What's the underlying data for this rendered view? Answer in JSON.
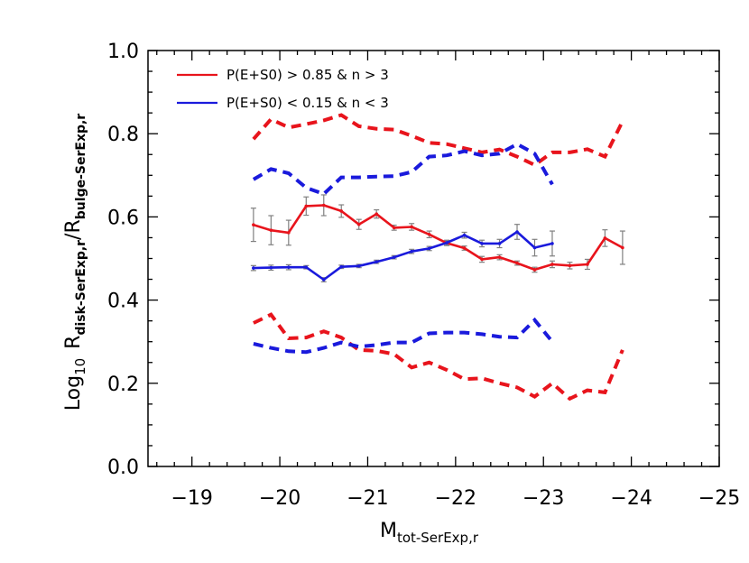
{
  "chart_data": {
    "type": "line",
    "title": "",
    "xlim": [
      -18.5,
      -25
    ],
    "ylim": [
      0,
      1
    ],
    "x_ticks": [
      "-19",
      "-20",
      "-21",
      "-22",
      "-23",
      "-24",
      "-25"
    ],
    "y_ticks": [
      "0.0",
      "0.2",
      "0.4",
      "0.6",
      "0.8",
      "1.0"
    ],
    "xlabel": {
      "main": "M",
      "sub": "tot-SerExp,r"
    },
    "ylabel": {
      "prefix": "Log",
      "prefix_sub": "10",
      "num": "R",
      "num_sub": "disk-SerExp,r",
      "slash": "/",
      "den": "R",
      "den_sub": "bulge-SerExp,r"
    },
    "grid": false,
    "legend_position": "top-left",
    "series": [
      {
        "name": "P(E+S0) > 0.85 & n > 3",
        "color": "#e8141c",
        "x": [
          -19.7,
          -19.9,
          -20.1,
          -20.3,
          -20.5,
          -20.7,
          -20.9,
          -21.1,
          -21.3,
          -21.5,
          -21.7,
          -21.9,
          -22.1,
          -22.3,
          -22.5,
          -22.7,
          -22.9,
          -23.1,
          -23.3,
          -23.5,
          -23.7,
          -23.9
        ],
        "median": [
          0.581,
          0.568,
          0.562,
          0.626,
          0.628,
          0.614,
          0.582,
          0.607,
          0.574,
          0.576,
          0.558,
          0.537,
          0.525,
          0.498,
          0.503,
          0.489,
          0.473,
          0.486,
          0.483,
          0.486,
          0.549,
          0.526
        ],
        "err": [
          0.04,
          0.035,
          0.03,
          0.022,
          0.025,
          0.015,
          0.012,
          0.01,
          0.006,
          0.008,
          0.008,
          0.006,
          0.005,
          0.007,
          0.006,
          0.005,
          0.006,
          0.008,
          0.008,
          0.012,
          0.02,
          0.04
        ],
        "upper": [
          0.787,
          0.835,
          0.815,
          0.823,
          0.832,
          0.845,
          0.818,
          0.812,
          0.81,
          0.795,
          0.778,
          0.775,
          0.765,
          0.755,
          0.762,
          0.745,
          0.725,
          0.755,
          0.755,
          0.763,
          0.745,
          0.83
        ],
        "lower": [
          0.345,
          0.365,
          0.308,
          0.31,
          0.325,
          0.31,
          0.28,
          0.278,
          0.27,
          0.238,
          0.25,
          0.232,
          0.21,
          0.212,
          0.2,
          0.19,
          0.168,
          0.2,
          0.163,
          0.183,
          0.178,
          0.28
        ]
      },
      {
        "name": "P(E+S0) < 0.15 & n < 3",
        "color": "#1a1adc",
        "x": [
          -19.7,
          -19.9,
          -20.1,
          -20.3,
          -20.5,
          -20.7,
          -20.9,
          -21.1,
          -21.3,
          -21.5,
          -21.7,
          -21.9,
          -22.1,
          -22.3,
          -22.5,
          -22.7,
          -22.9,
          -23.1
        ],
        "median": [
          0.477,
          0.478,
          0.479,
          0.479,
          0.449,
          0.48,
          0.482,
          0.492,
          0.503,
          0.517,
          0.524,
          0.538,
          0.556,
          0.536,
          0.536,
          0.564,
          0.526,
          0.536
        ],
        "err": [
          0.006,
          0.006,
          0.006,
          0.004,
          0.005,
          0.004,
          0.004,
          0.004,
          0.004,
          0.005,
          0.005,
          0.006,
          0.007,
          0.008,
          0.01,
          0.018,
          0.02,
          0.03
        ],
        "upper": [
          0.69,
          0.715,
          0.705,
          0.67,
          0.655,
          0.695,
          0.695,
          0.697,
          0.698,
          0.708,
          0.745,
          0.748,
          0.758,
          0.748,
          0.752,
          0.775,
          0.752,
          0.678
        ],
        "lower": [
          0.295,
          0.285,
          0.277,
          0.275,
          0.285,
          0.298,
          0.288,
          0.292,
          0.298,
          0.298,
          0.32,
          0.322,
          0.322,
          0.318,
          0.312,
          0.31,
          0.352,
          0.3
        ]
      }
    ]
  }
}
